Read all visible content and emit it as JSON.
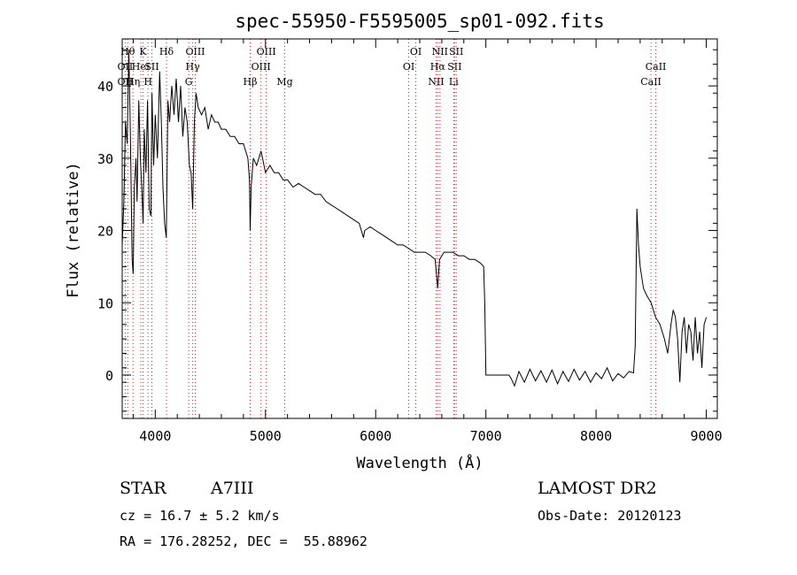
{
  "chart_data": {
    "type": "line",
    "title": "spec-55950-F5595005_sp01-092.fits",
    "xlabel": "Wavelength (Å)",
    "ylabel": "Flux (relative)",
    "xlim": [
      3700,
      9100
    ],
    "ylim": [
      -6,
      46.5
    ],
    "xticks": [
      4000,
      5000,
      6000,
      7000,
      8000,
      9000
    ],
    "yticks": [
      0,
      10,
      20,
      30,
      40
    ],
    "grid": false,
    "series": [
      {
        "color": "#000000",
        "points": [
          [
            3700,
            18
          ],
          [
            3715,
            24
          ],
          [
            3730,
            35
          ],
          [
            3745,
            32
          ],
          [
            3760,
            45
          ],
          [
            3775,
            33
          ],
          [
            3790,
            16
          ],
          [
            3800,
            14
          ],
          [
            3810,
            26
          ],
          [
            3825,
            30
          ],
          [
            3835,
            24
          ],
          [
            3850,
            38
          ],
          [
            3865,
            30
          ],
          [
            3880,
            25
          ],
          [
            3890,
            21
          ],
          [
            3900,
            34
          ],
          [
            3915,
            28
          ],
          [
            3930,
            38
          ],
          [
            3945,
            23
          ],
          [
            3960,
            22
          ],
          [
            3970,
            39
          ],
          [
            3985,
            29
          ],
          [
            4000,
            36
          ],
          [
            4020,
            30
          ],
          [
            4040,
            42
          ],
          [
            4055,
            35
          ],
          [
            4070,
            26
          ],
          [
            4085,
            21
          ],
          [
            4100,
            19
          ],
          [
            4115,
            38
          ],
          [
            4130,
            35
          ],
          [
            4150,
            40
          ],
          [
            4170,
            36
          ],
          [
            4190,
            41
          ],
          [
            4210,
            35
          ],
          [
            4230,
            40
          ],
          [
            4250,
            33
          ],
          [
            4270,
            37
          ],
          [
            4290,
            35
          ],
          [
            4310,
            29
          ],
          [
            4325,
            28
          ],
          [
            4340,
            23
          ],
          [
            4355,
            35
          ],
          [
            4370,
            39
          ],
          [
            4390,
            37
          ],
          [
            4420,
            36
          ],
          [
            4450,
            37
          ],
          [
            4480,
            34
          ],
          [
            4510,
            36
          ],
          [
            4540,
            35
          ],
          [
            4570,
            35
          ],
          [
            4600,
            34
          ],
          [
            4640,
            34
          ],
          [
            4680,
            33
          ],
          [
            4720,
            33
          ],
          [
            4760,
            32
          ],
          [
            4800,
            32
          ],
          [
            4840,
            30
          ],
          [
            4855,
            27
          ],
          [
            4861,
            20
          ],
          [
            4870,
            26
          ],
          [
            4890,
            30
          ],
          [
            4920,
            29
          ],
          [
            4960,
            31
          ],
          [
            5000,
            28
          ],
          [
            5040,
            29
          ],
          [
            5080,
            28
          ],
          [
            5120,
            28
          ],
          [
            5160,
            27
          ],
          [
            5200,
            27
          ],
          [
            5250,
            26
          ],
          [
            5300,
            26.5
          ],
          [
            5350,
            26
          ],
          [
            5400,
            25.5
          ],
          [
            5450,
            25
          ],
          [
            5500,
            25
          ],
          [
            5550,
            24
          ],
          [
            5600,
            23.5
          ],
          [
            5650,
            23
          ],
          [
            5700,
            22.5
          ],
          [
            5750,
            22
          ],
          [
            5800,
            21.5
          ],
          [
            5850,
            21
          ],
          [
            5890,
            19
          ],
          [
            5900,
            20
          ],
          [
            5950,
            20.5
          ],
          [
            6000,
            20
          ],
          [
            6050,
            19.5
          ],
          [
            6100,
            19
          ],
          [
            6150,
            18.5
          ],
          [
            6200,
            18
          ],
          [
            6250,
            18
          ],
          [
            6300,
            17.5
          ],
          [
            6350,
            17
          ],
          [
            6400,
            17
          ],
          [
            6450,
            17
          ],
          [
            6500,
            16.5
          ],
          [
            6540,
            16
          ],
          [
            6563,
            12
          ],
          [
            6580,
            16
          ],
          [
            6620,
            17
          ],
          [
            6660,
            17
          ],
          [
            6700,
            17
          ],
          [
            6750,
            16.5
          ],
          [
            6800,
            16.5
          ],
          [
            6850,
            16
          ],
          [
            6900,
            16
          ],
          [
            6950,
            15.5
          ],
          [
            6980,
            15
          ],
          [
            6990,
            10
          ],
          [
            7000,
            0
          ],
          [
            7210,
            0
          ],
          [
            7230,
            -0.5
          ],
          [
            7260,
            -1.5
          ],
          [
            7300,
            0.5
          ],
          [
            7350,
            -1
          ],
          [
            7400,
            0.8
          ],
          [
            7450,
            -0.8
          ],
          [
            7500,
            0.6
          ],
          [
            7550,
            -1
          ],
          [
            7600,
            0.7
          ],
          [
            7650,
            -1.2
          ],
          [
            7700,
            0.5
          ],
          [
            7750,
            -0.9
          ],
          [
            7800,
            0.8
          ],
          [
            7850,
            -0.7
          ],
          [
            7900,
            0.5
          ],
          [
            7950,
            -1
          ],
          [
            8000,
            0.3
          ],
          [
            8050,
            -0.5
          ],
          [
            8100,
            1
          ],
          [
            8150,
            -0.8
          ],
          [
            8200,
            0.2
          ],
          [
            8250,
            -0.4
          ],
          [
            8300,
            0.5
          ],
          [
            8340,
            0.3
          ],
          [
            8355,
            4
          ],
          [
            8370,
            23
          ],
          [
            8385,
            18
          ],
          [
            8400,
            15
          ],
          [
            8430,
            12
          ],
          [
            8460,
            11
          ],
          [
            8500,
            10
          ],
          [
            8540,
            8
          ],
          [
            8580,
            7
          ],
          [
            8620,
            5
          ],
          [
            8650,
            3
          ],
          [
            8680,
            7
          ],
          [
            8700,
            9
          ],
          [
            8720,
            8
          ],
          [
            8740,
            5
          ],
          [
            8760,
            -1
          ],
          [
            8780,
            6
          ],
          [
            8800,
            8
          ],
          [
            8820,
            3
          ],
          [
            8840,
            7
          ],
          [
            8860,
            6
          ],
          [
            8880,
            2
          ],
          [
            8900,
            8
          ],
          [
            8920,
            3
          ],
          [
            8940,
            6
          ],
          [
            8960,
            1
          ],
          [
            8980,
            7
          ],
          [
            9000,
            8
          ]
        ]
      }
    ],
    "line_markers": [
      {
        "wl": 3727,
        "labels": [
          "OII",
          "OII"
        ],
        "rows": [
          1,
          2
        ]
      },
      {
        "wl": 3750,
        "labels": [
          "Hθ"
        ],
        "rows": [
          0
        ]
      },
      {
        "wl": 3798,
        "labels": [
          "Hη"
        ],
        "rows": [
          2
        ]
      },
      {
        "wl": 3869,
        "labels": [
          "HeI"
        ],
        "rows": [
          1
        ]
      },
      {
        "wl": 3889,
        "labels": [
          "K"
        ],
        "rows": [
          0
        ]
      },
      {
        "wl": 3934,
        "labels": [
          "H"
        ],
        "rows": [
          2
        ]
      },
      {
        "wl": 3969,
        "labels": [
          "SII"
        ],
        "rows": [
          1
        ]
      },
      {
        "wl": 4102,
        "labels": [
          "Hδ"
        ],
        "rows": [
          0
        ]
      },
      {
        "wl": 4304,
        "labels": [
          "G"
        ],
        "rows": [
          2
        ]
      },
      {
        "wl": 4340,
        "labels": [
          "Hγ"
        ],
        "rows": [
          1
        ]
      },
      {
        "wl": 4363,
        "labels": [
          "OIII"
        ],
        "rows": [
          0
        ]
      },
      {
        "wl": 4861,
        "labels": [
          "Hβ"
        ],
        "rows": [
          2
        ]
      },
      {
        "wl": 4959,
        "labels": [
          "OIII"
        ],
        "rows": [
          1
        ]
      },
      {
        "wl": 5007,
        "labels": [
          "OIII"
        ],
        "rows": [
          0
        ]
      },
      {
        "wl": 5175,
        "labels": [
          "Mg"
        ],
        "rows": [
          2
        ]
      },
      {
        "wl": 6300,
        "labels": [
          "OI"
        ],
        "rows": [
          1
        ]
      },
      {
        "wl": 6364,
        "labels": [
          "OI"
        ],
        "rows": [
          0
        ]
      },
      {
        "wl": 6548,
        "labels": [
          "NII"
        ],
        "rows": [
          2
        ]
      },
      {
        "wl": 6563,
        "labels": [
          "Hα"
        ],
        "rows": [
          1
        ]
      },
      {
        "wl": 6583,
        "labels": [
          "NII"
        ],
        "rows": [
          0
        ]
      },
      {
        "wl": 6708,
        "labels": [
          "Li"
        ],
        "rows": [
          2
        ]
      },
      {
        "wl": 6716,
        "labels": [
          "SII"
        ],
        "rows": [
          1
        ]
      },
      {
        "wl": 6731,
        "labels": [
          "SII"
        ],
        "rows": [
          0
        ]
      },
      {
        "wl": 8498,
        "labels": [
          "CaII"
        ],
        "rows": [
          2
        ]
      },
      {
        "wl": 8542,
        "labels": [
          "CaII"
        ],
        "rows": [
          1
        ]
      }
    ]
  },
  "info": {
    "object_type": "STAR",
    "subclass": "A7III",
    "survey": "LAMOST DR2",
    "redshift": "cz = 16.7 ± 5.2 km/s",
    "obs_date": "Obs-Date: 20120123",
    "coords": "RA = 176.28252, DEC =  55.88962"
  }
}
